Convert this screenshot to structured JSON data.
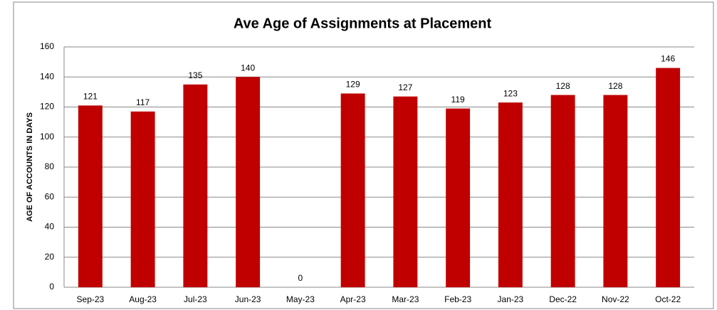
{
  "chart_data": {
    "type": "bar",
    "title": "Ave Age of Assignments at Placement",
    "y_label": "AGE OF ACCOUNTS IN DAYS",
    "categories": [
      "Sep-23",
      "Aug-23",
      "Jul-23",
      "Jun-23",
      "May-23",
      "Apr-23",
      "Mar-23",
      "Feb-23",
      "Jan-23",
      "Dec-22",
      "Nov-22",
      "Oct-22"
    ],
    "values": [
      121,
      117,
      135,
      140,
      0,
      129,
      127,
      119,
      123,
      128,
      128,
      146
    ],
    "color": "#c00000",
    "ylim": [
      0,
      160
    ],
    "yticks": [
      0,
      20,
      40,
      60,
      80,
      100,
      120,
      140,
      160
    ],
    "grid": true
  }
}
